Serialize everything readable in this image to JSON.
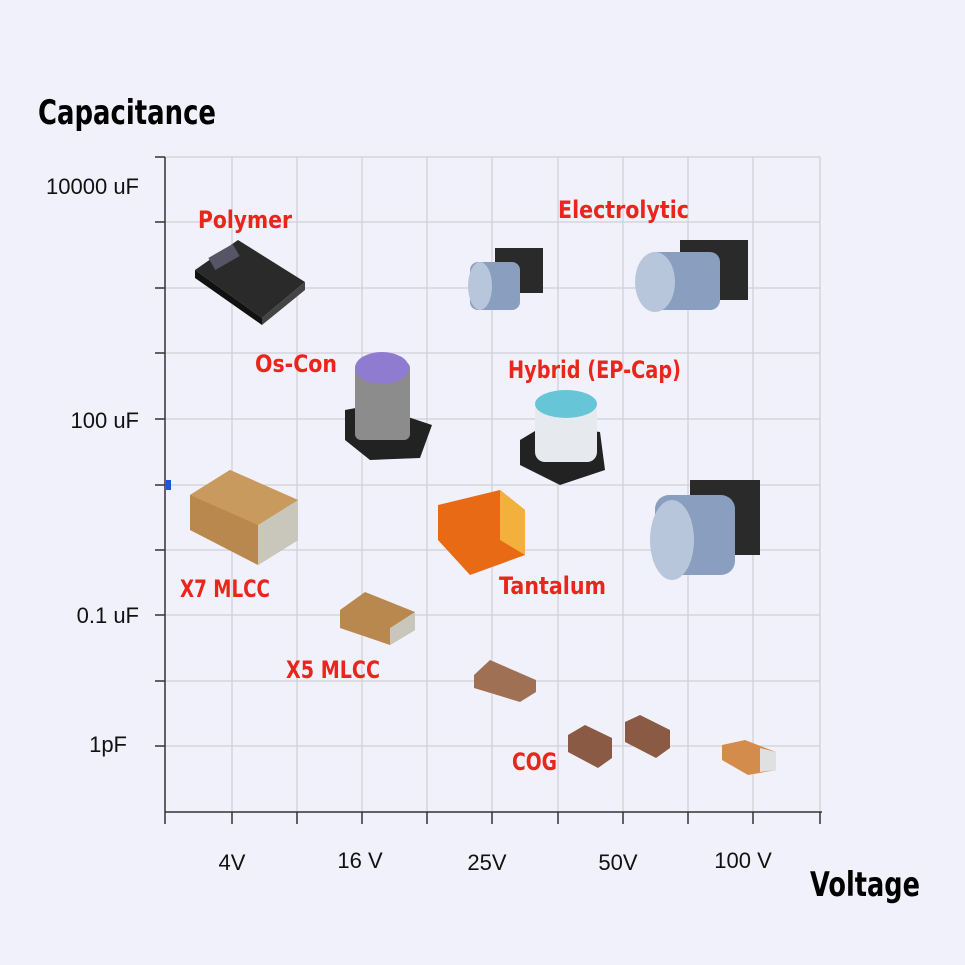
{
  "axes": {
    "y_title": "Capacitance",
    "x_title": "Voltage",
    "y_ticks": [
      "10000 uF",
      "100 uF",
      "0.1 uF",
      "1pF"
    ],
    "x_ticks": [
      "4V",
      "16 V",
      "25V",
      "50V",
      "100 V"
    ]
  },
  "components": [
    {
      "label": "Polymer"
    },
    {
      "label": "Electrolytic"
    },
    {
      "label": "Os-Con"
    },
    {
      "label": "Hybrid (EP-Cap)"
    },
    {
      "label": "X7 MLCC"
    },
    {
      "label": "Tantalum"
    },
    {
      "label": "X5 MLCC"
    },
    {
      "label": "COG"
    }
  ]
}
